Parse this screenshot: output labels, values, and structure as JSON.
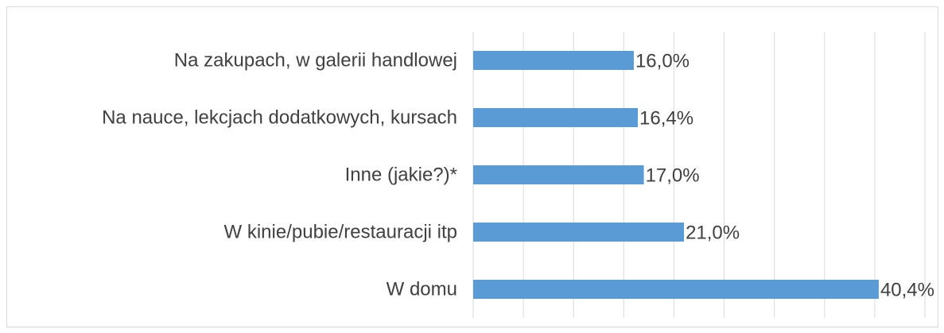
{
  "chart_data": {
    "type": "bar",
    "orientation": "horizontal",
    "categories": [
      "Na zakupach, w galerii handlowej",
      "Na nauce, lekcjach dodatkowych, kursach",
      "Inne (jakie?)*",
      "W kinie/pubie/restauracji itp",
      "W domu"
    ],
    "values": [
      16.0,
      16.4,
      17.0,
      21.0,
      40.4
    ],
    "value_labels": [
      "16,0%",
      "16,4%",
      "17,0%",
      "21,0%",
      "40,4%"
    ],
    "color": "#5b9bd5",
    "xlim": [
      0,
      45
    ],
    "xticks": [
      0,
      5,
      10,
      15,
      20,
      25,
      30,
      35,
      40,
      45
    ],
    "grid": true
  }
}
